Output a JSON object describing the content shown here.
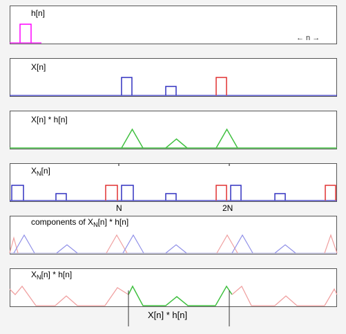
{
  "panels": [
    {
      "label_base": "h[n]",
      "label_sub": "",
      "label_suffix": ""
    },
    {
      "label_base": "X[n]",
      "label_sub": "",
      "label_suffix": ""
    },
    {
      "label_base": "X[n] * h[n]",
      "label_sub": "",
      "label_suffix": ""
    },
    {
      "label_base": "X",
      "label_sub": "N",
      "label_suffix": "[n]"
    },
    {
      "label_base": "components of X",
      "label_sub": "N",
      "label_suffix": "[n] * h[n]"
    },
    {
      "label_base": "X",
      "label_sub": "N",
      "label_suffix": "[n] * h[n]"
    }
  ],
  "axis_note": "← n →",
  "ticks": {
    "N": "N",
    "twoN": "2N"
  },
  "bottom_label": "X[n] * h[n]",
  "colors": {
    "h": "#ff00ff",
    "blue": "#3030c0",
    "red": "#e03030",
    "green": "#40c040",
    "blue_light": "#9090e8",
    "red_light": "#f0a0a0",
    "panel_border": "#555555",
    "background": "#f4f4f4"
  }
}
